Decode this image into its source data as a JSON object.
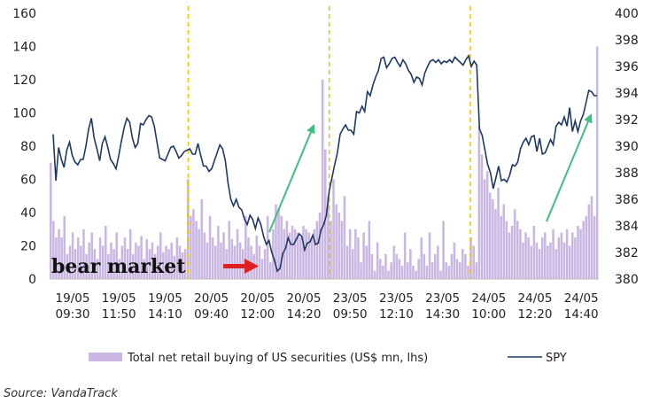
{
  "chart_data": {
    "type": "bar+line",
    "y_left": {
      "ticks": [
        0,
        20,
        40,
        60,
        80,
        100,
        120,
        140,
        160
      ],
      "range": [
        0,
        160
      ]
    },
    "y_right": {
      "ticks": [
        380,
        382,
        384,
        386,
        388,
        390,
        392,
        394,
        396,
        398,
        400
      ],
      "range": [
        380,
        400
      ]
    },
    "x_ticks": [
      [
        "19/05",
        "09:30"
      ],
      [
        "19/05",
        "11:50"
      ],
      [
        "19/05",
        "14:10"
      ],
      [
        "20/05",
        "09:40"
      ],
      [
        "20/05",
        "12:00"
      ],
      [
        "20/05",
        "14:20"
      ],
      [
        "23/05",
        "09:50"
      ],
      [
        "23/05",
        "12:10"
      ],
      [
        "23/05",
        "14:30"
      ],
      [
        "24/05",
        "10:00"
      ],
      [
        "24/05",
        "12:20"
      ],
      [
        "24/05",
        "14:40"
      ]
    ],
    "day_separators_after_tick_index": [
      2.5,
      5.55,
      8.6
    ],
    "bar_series": {
      "name": "Total net retail buying of US securities  (US$ mn, lhs)",
      "color": "#c9b6e2",
      "values": [
        70,
        35,
        25,
        30,
        25,
        38,
        15,
        20,
        28,
        18,
        25,
        20,
        30,
        15,
        22,
        28,
        18,
        12,
        25,
        20,
        32,
        15,
        22,
        18,
        28,
        12,
        20,
        25,
        18,
        30,
        15,
        22,
        20,
        26,
        12,
        24,
        18,
        22,
        15,
        20,
        28,
        16,
        20,
        18,
        22,
        14,
        25,
        20,
        16,
        18,
        60,
        38,
        42,
        35,
        30,
        48,
        28,
        22,
        38,
        25,
        20,
        32,
        22,
        28,
        18,
        35,
        24,
        20,
        30,
        22,
        18,
        38,
        25,
        20,
        15,
        26,
        20,
        12,
        18,
        38,
        10,
        30,
        45,
        42,
        38,
        30,
        35,
        28,
        32,
        30,
        28,
        25,
        32,
        30,
        28,
        25,
        30,
        35,
        40,
        120,
        78,
        50,
        35,
        60,
        45,
        40,
        35,
        50,
        20,
        30,
        18,
        30,
        25,
        10,
        28,
        20,
        35,
        15,
        5,
        22,
        12,
        8,
        15,
        5,
        10,
        20,
        15,
        12,
        8,
        28,
        10,
        18,
        8,
        5,
        12,
        25,
        15,
        8,
        28,
        10,
        15,
        20,
        5,
        35,
        10,
        8,
        15,
        22,
        12,
        10,
        18,
        15,
        8,
        25,
        20,
        10,
        92,
        75,
        60,
        65,
        52,
        48,
        42,
        55,
        38,
        45,
        35,
        28,
        32,
        42,
        35,
        30,
        22,
        28,
        25,
        20,
        32,
        22,
        18,
        25,
        28,
        20,
        22,
        30,
        18,
        25,
        28,
        22,
        30,
        20,
        28,
        25,
        32,
        30,
        35,
        38,
        45,
        50,
        38,
        140
      ]
    },
    "line_series": {
      "name": "SPY",
      "color": "#1f3864",
      "values": [
        390.9,
        387.4,
        389.9,
        389.0,
        388.4,
        389.7,
        390.3,
        389.3,
        388.8,
        388.6,
        389.0,
        389.0,
        390.0,
        391.3,
        392.1,
        390.6,
        389.8,
        388.9,
        390.2,
        390.7,
        389.9,
        389.0,
        388.7,
        388.3,
        389.3,
        390.4,
        391.4,
        392.1,
        391.8,
        390.6,
        389.9,
        390.2,
        391.7,
        391.6,
        392.0,
        392.3,
        392.2,
        391.5,
        390.3,
        389.1,
        389.0,
        388.9,
        389.4,
        389.9,
        390.0,
        389.6,
        389.1,
        389.3,
        389.6,
        389.7,
        389.8,
        389.4,
        389.4,
        390.2,
        389.3,
        388.5,
        388.5,
        388.1,
        388.3,
        388.9,
        389.5,
        390.1,
        389.8,
        388.9,
        387.2,
        386.0,
        385.5,
        386.0,
        385.4,
        385.2,
        384.5,
        384.1,
        384.8,
        384.5,
        383.8,
        384.6,
        384.1,
        383.2,
        382.6,
        382.9,
        382.0,
        381.4,
        380.6,
        380.8,
        381.9,
        382.3,
        383.1,
        382.6,
        382.6,
        383.0,
        383.4,
        383.2,
        382.2,
        382.7,
        382.8,
        383.3,
        382.6,
        382.7,
        383.7,
        384.1,
        384.8,
        386.6,
        387.6,
        388.6,
        389.5,
        390.9,
        391.3,
        391.6,
        391.2,
        391.2,
        390.9,
        392.6,
        392.5,
        393.0,
        392.6,
        394.1,
        393.8,
        394.6,
        395.2,
        395.7,
        396.6,
        396.7,
        395.9,
        396.2,
        396.6,
        396.7,
        396.3,
        396.0,
        396.5,
        396.2,
        395.7,
        395.4,
        394.8,
        395.2,
        395.1,
        394.6,
        395.5,
        396.0,
        396.4,
        396.5,
        396.3,
        396.5,
        396.2,
        396.4,
        396.3,
        396.5,
        396.3,
        396.7,
        396.5,
        396.3,
        396.1,
        396.5,
        396.8,
        396.0,
        396.4,
        396.1,
        391.3,
        390.8,
        389.7,
        388.6,
        388.0,
        386.8,
        387.6,
        388.5,
        387.4,
        387.5,
        387.3,
        387.8,
        388.6,
        388.5,
        388.8,
        389.8,
        390.3,
        390.6,
        390.1,
        390.7,
        390.8,
        389.6,
        390.6,
        389.4,
        389.5,
        390.0,
        390.5,
        390.1,
        391.5,
        391.8,
        391.6,
        392.2,
        391.5,
        392.9,
        391.1,
        391.9,
        391.1,
        391.9,
        392.4,
        393.3,
        394.2,
        394.1,
        393.8,
        393.8
      ]
    },
    "annotations": {
      "bear_market_label": "bear market",
      "bear_market_arrow_color": "#e02020",
      "trend_arrow_color": "#3fbf7f"
    },
    "legend": {
      "bar_label": "Total net retail buying of US securities  (US$ mn, lhs)",
      "line_label": "SPY"
    }
  },
  "source": "Source: VandaTrack"
}
